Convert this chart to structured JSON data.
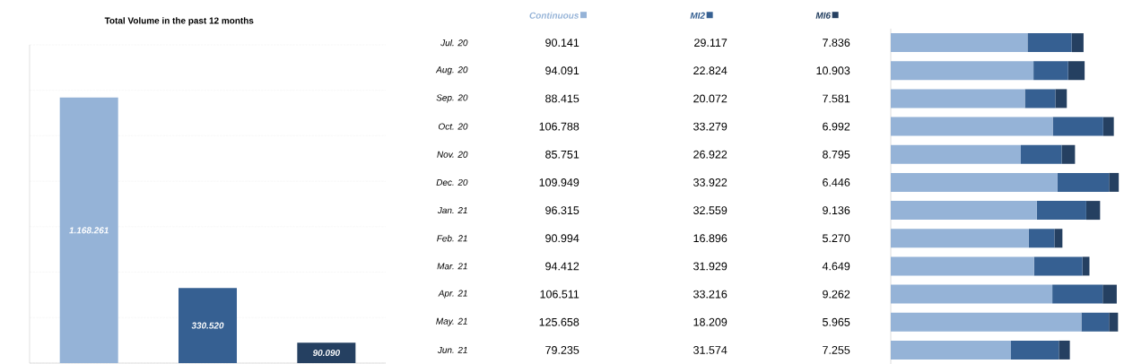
{
  "chart_data": [
    {
      "type": "bar",
      "title": "Total Volume in the past 12 months",
      "categories": [
        null,
        null,
        null
      ],
      "values": [
        1168261,
        330520,
        90090
      ],
      "colors": [
        "#95b3d7",
        "#366092",
        "#254061"
      ],
      "value_labels": [
        "1.168.261",
        "330.520",
        "90.090"
      ],
      "ylim": [
        0,
        1400000
      ],
      "yticks": [
        {
          "value": 0,
          "label": null
        },
        {
          "value": 200000,
          "label": null
        },
        {
          "value": 400000,
          "label": null
        },
        {
          "value": 600000,
          "label": null
        },
        {
          "value": 800000,
          "label": null
        },
        {
          "value": 1000000,
          "label": null
        },
        {
          "value": 1200000,
          "label": null
        },
        {
          "value": 1400000,
          "label": null
        }
      ],
      "grid": "y",
      "tick_labels": false
    },
    {
      "type": "bar",
      "orientation": "horizontal",
      "stacked": true,
      "categories": [
        "Jul. 20",
        "Aug. 20",
        "Sep. 20",
        "Oct. 20",
        "Nov. 20",
        "Dec. 20",
        "Jan. 21",
        "Feb. 21",
        "Mar. 21",
        "Apr. 21",
        "May. 21",
        "Jun. 21"
      ],
      "xlim": [
        0,
        152000
      ],
      "legend": "top",
      "tick_labels": "y",
      "series": [
        {
          "name": "Continuous",
          "color": "#95b3d7",
          "values": [
            90141,
            94091,
            88415,
            106788,
            85751,
            109949,
            96315,
            90994,
            94412,
            106511,
            125658,
            79235
          ],
          "value_labels": [
            "90.141",
            "94.091",
            "88.415",
            "106.788",
            "85.751",
            "109.949",
            "96.315",
            "90.994",
            "94.412",
            "106.511",
            "125.658",
            "79.235"
          ]
        },
        {
          "name": "MI2",
          "color": "#366092",
          "values": [
            29117,
            22824,
            20072,
            33279,
            26922,
            33922,
            32559,
            16896,
            31929,
            33216,
            18209,
            31574
          ],
          "value_labels": [
            "29.117",
            "22.824",
            "20.072",
            "33.279",
            "26.922",
            "33.922",
            "32.559",
            "16.896",
            "31.929",
            "33.216",
            "18.209",
            "31.574"
          ]
        },
        {
          "name": "MI6",
          "color": "#254061",
          "values": [
            7836,
            10903,
            7581,
            6992,
            8795,
            6446,
            9136,
            5270,
            4649,
            9262,
            5965,
            7255
          ],
          "value_labels": [
            "7.836",
            "10.903",
            "7.581",
            "6.992",
            "8.795",
            "6.446",
            "9.136",
            "5.270",
            "4.649",
            "9.262",
            "5.965",
            "7.255"
          ]
        }
      ]
    }
  ]
}
